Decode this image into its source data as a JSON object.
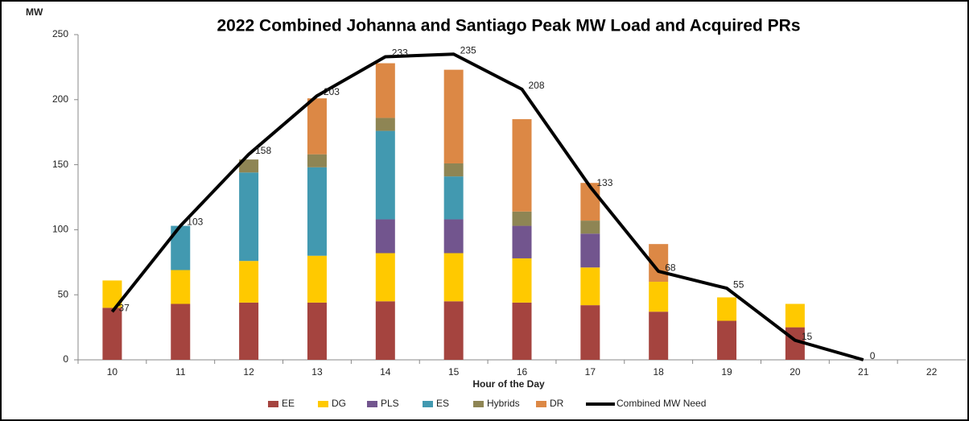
{
  "chart_data": {
    "type": "stacked-bar-line",
    "title": "2022 Combined Johanna and Santiago Peak MW Load and Acquired PRs",
    "y_label": "MW",
    "x_label": "Hour of the Day",
    "categories": [
      "10",
      "11",
      "12",
      "13",
      "14",
      "15",
      "16",
      "17",
      "18",
      "19",
      "20",
      "21",
      "22"
    ],
    "ylim": [
      0,
      250
    ],
    "yticks": [
      0,
      50,
      100,
      150,
      200,
      250
    ],
    "grid": false,
    "legend": "bottom",
    "series": [
      {
        "name": "EE",
        "color": "#a5443f",
        "values": [
          40,
          43,
          44,
          44,
          45,
          45,
          44,
          42,
          37,
          30,
          25,
          null,
          null
        ]
      },
      {
        "name": "DG",
        "color": "#ffc900",
        "values": [
          21,
          26,
          32,
          36,
          37,
          37,
          34,
          29,
          23,
          18,
          18,
          null,
          null
        ]
      },
      {
        "name": "PLS",
        "color": "#72558e",
        "values": [
          null,
          null,
          null,
          null,
          26,
          26,
          25,
          26,
          null,
          null,
          null,
          null,
          null
        ]
      },
      {
        "name": "ES",
        "color": "#4299b0",
        "values": [
          null,
          34,
          68,
          68,
          68,
          33,
          null,
          null,
          null,
          null,
          null,
          null,
          null
        ]
      },
      {
        "name": "Hybrids",
        "color": "#8e8554",
        "values": [
          null,
          null,
          10,
          10,
          10,
          10,
          11,
          10,
          null,
          null,
          null,
          null,
          null
        ]
      },
      {
        "name": "DR",
        "color": "#dc8845",
        "values": [
          null,
          null,
          null,
          43,
          42,
          72,
          71,
          29,
          29,
          null,
          null,
          null,
          null
        ]
      },
      {
        "name": "Combined MW Need",
        "color": "#000000",
        "kind": "line",
        "values": [
          37,
          103,
          158,
          203,
          233,
          235,
          208,
          133,
          68,
          55,
          15,
          0,
          null
        ]
      }
    ]
  }
}
